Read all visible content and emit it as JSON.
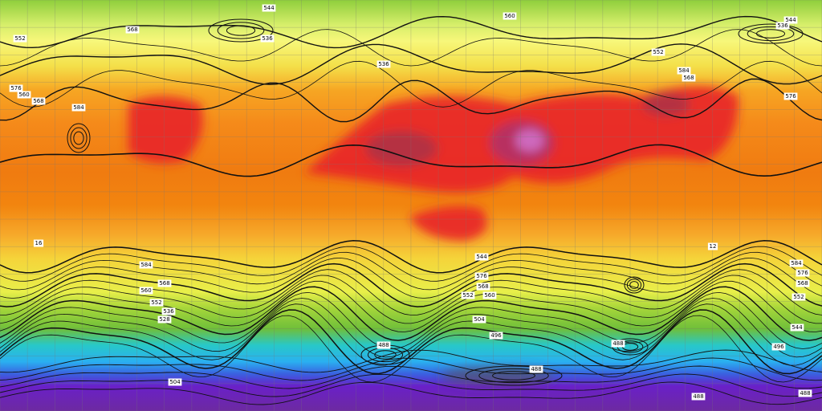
{
  "contour_labels": [
    "544",
    "560",
    "544",
    "536",
    "552",
    "568",
    "536",
    "536",
    "552",
    "560",
    "568",
    "576",
    "584",
    "584",
    "568",
    "576",
    "584",
    "560",
    "568",
    "552",
    "536",
    "528",
    "544",
    "576",
    "568",
    "560",
    "552",
    "504",
    "496",
    "488",
    "488",
    "488",
    "504",
    "488",
    "584",
    "576",
    "568",
    "552",
    "544",
    "496",
    "488",
    "16",
    "12"
  ]
}
